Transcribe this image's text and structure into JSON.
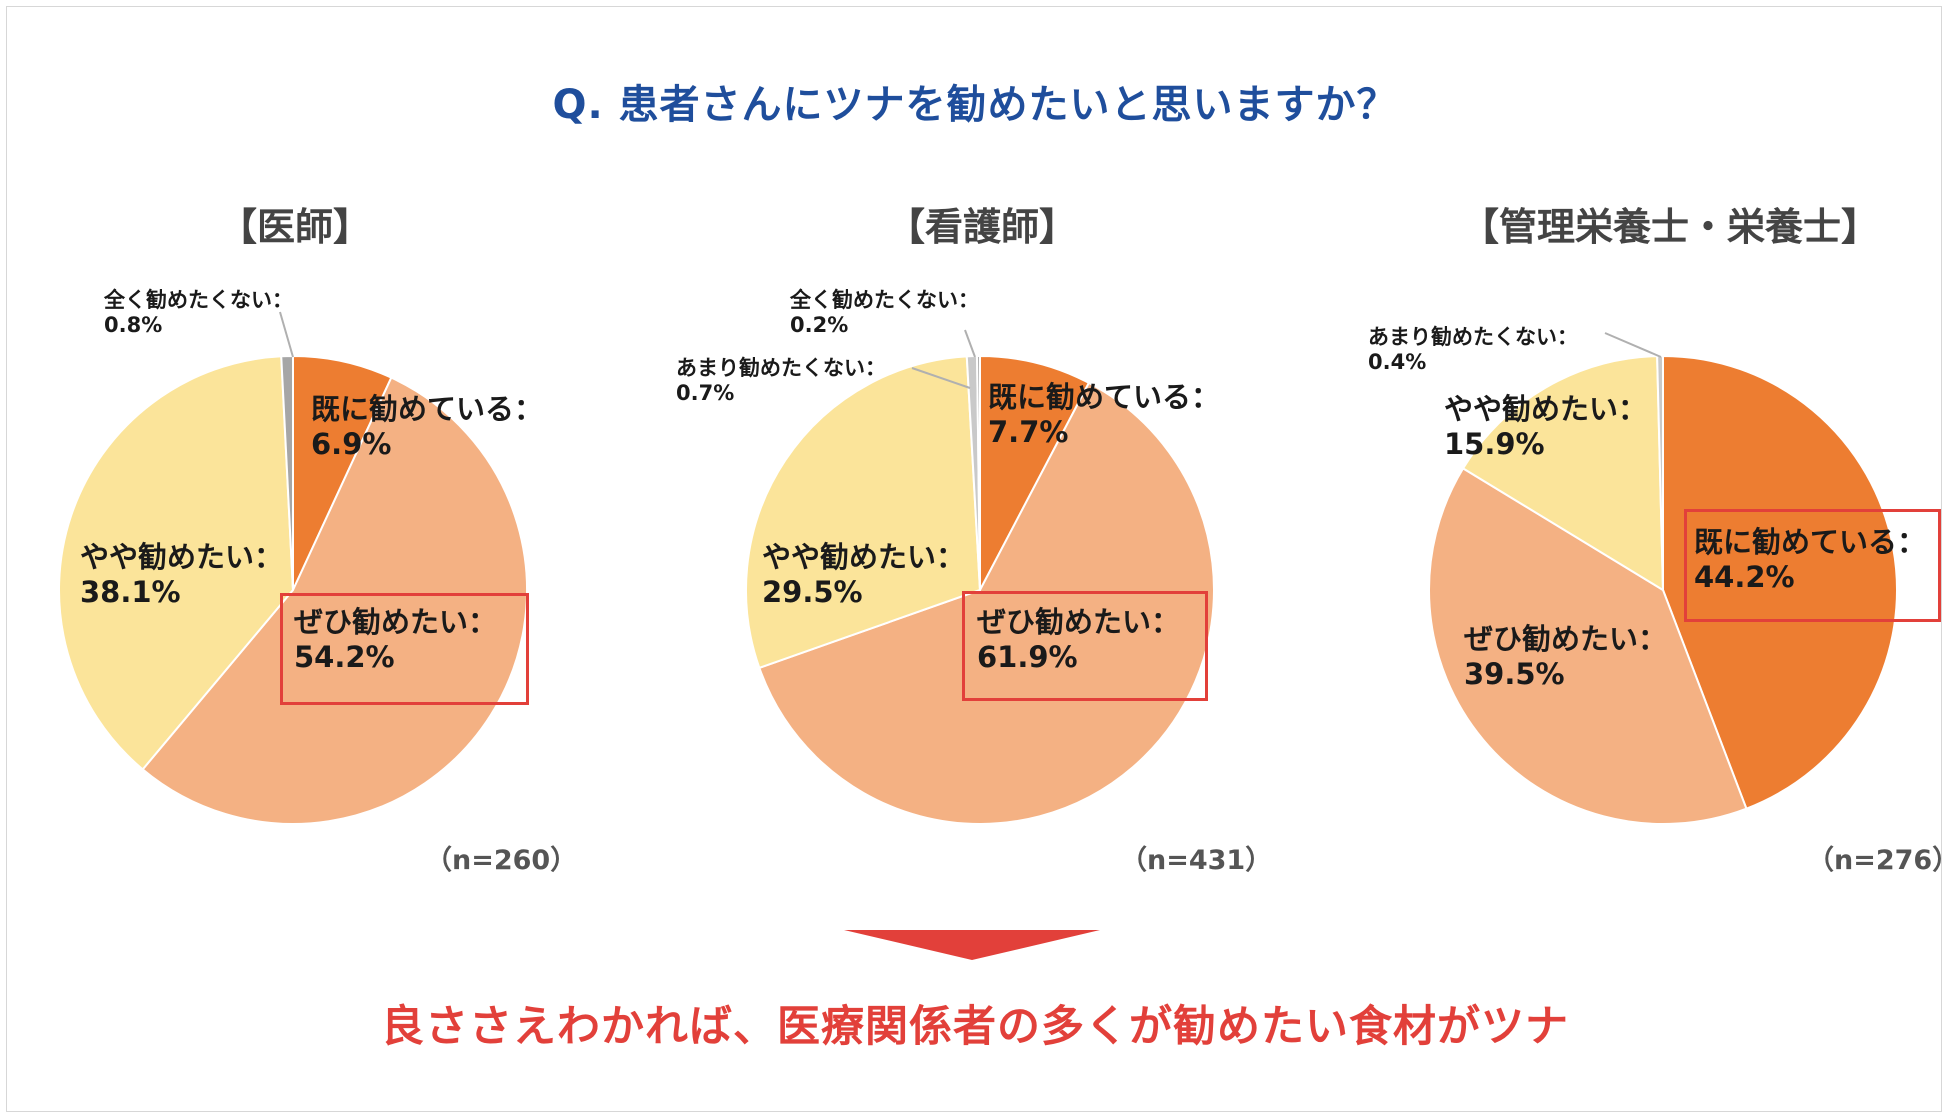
{
  "question": "Q. 患者さんにツナを勧めたいと思いますか？",
  "conclusion": "良ささえわかれば、医療関係者の多くが勧めたい食材がツナ",
  "colors": {
    "title": "#1f4e9c",
    "accent_red": "#e2403a",
    "already": "#ed7d31",
    "definitely": "#f4b183",
    "somewhat": "#fbe49a",
    "not_much": "#c9c9c9",
    "not_at_all": "#a6a6a6"
  },
  "chart_data": [
    {
      "type": "pie",
      "title": "【医師】",
      "n_label": "（n=260）",
      "slices": [
        {
          "name": "既に勧めている",
          "value": 6.9,
          "label_line1": "既に勧めている：",
          "label_line2": "6.9%",
          "highlight": false
        },
        {
          "name": "ぜひ勧めたい",
          "value": 54.2,
          "label_line1": "ぜひ勧めたい：",
          "label_line2": "54.2%",
          "highlight": true
        },
        {
          "name": "やや勧めたい",
          "value": 38.1,
          "label_line1": "やや勧めたい：",
          "label_line2": "38.1%",
          "highlight": false
        },
        {
          "name": "全く勧めたくない",
          "value": 0.8,
          "label_line1": "全く勧めたくない：",
          "label_line2": "0.8%",
          "highlight": false
        }
      ]
    },
    {
      "type": "pie",
      "title": "【看護師】",
      "n_label": "（n=431）",
      "slices": [
        {
          "name": "既に勧めている",
          "value": 7.7,
          "label_line1": "既に勧めている：",
          "label_line2": "7.7%",
          "highlight": false
        },
        {
          "name": "ぜひ勧めたい",
          "value": 61.9,
          "label_line1": "ぜひ勧めたい：",
          "label_line2": "61.9%",
          "highlight": true
        },
        {
          "name": "やや勧めたい",
          "value": 29.5,
          "label_line1": "やや勧めたい：",
          "label_line2": "29.5%",
          "highlight": false
        },
        {
          "name": "あまり勧めたくない",
          "value": 0.7,
          "label_line1": "あまり勧めたくない：",
          "label_line2": "0.7%",
          "highlight": false
        },
        {
          "name": "全く勧めたくない",
          "value": 0.2,
          "label_line1": "全く勧めたくない：",
          "label_line2": "0.2%",
          "highlight": false
        }
      ]
    },
    {
      "type": "pie",
      "title": "【管理栄養士・栄養士】",
      "n_label": "（n=276）",
      "slices": [
        {
          "name": "既に勧めている",
          "value": 44.2,
          "label_line1": "既に勧めている：",
          "label_line2": "44.2%",
          "highlight": true
        },
        {
          "name": "ぜひ勧めたい",
          "value": 39.5,
          "label_line1": "ぜひ勧めたい：",
          "label_line2": "39.5%",
          "highlight": false
        },
        {
          "name": "やや勧めたい",
          "value": 15.9,
          "label_line1": "やや勧めたい：",
          "label_line2": "15.9%",
          "highlight": false
        },
        {
          "name": "あまり勧めたくない",
          "value": 0.4,
          "label_line1": "あまり勧めたくない：",
          "label_line2": "0.4%",
          "highlight": false
        }
      ]
    }
  ]
}
